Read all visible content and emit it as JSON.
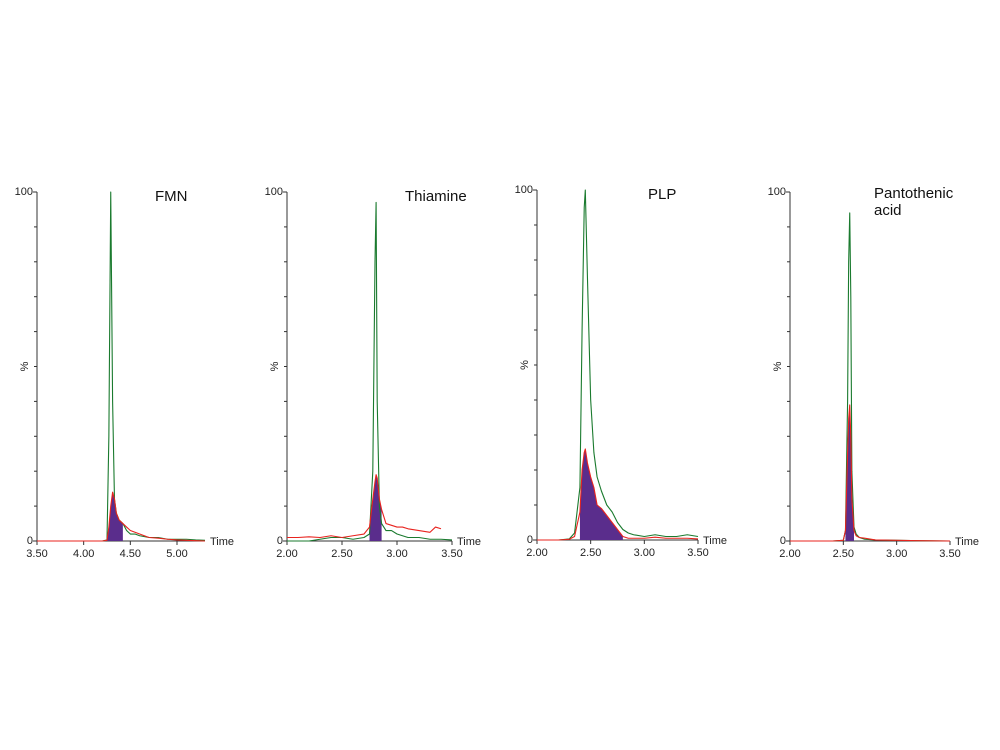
{
  "chart_data": [
    {
      "type": "line",
      "title": "FMN",
      "ylabel": "%",
      "xlabel": "Time",
      "x": [
        3.5,
        3.6,
        3.7,
        3.8,
        3.9,
        4.0,
        4.1,
        4.2,
        4.25,
        4.27,
        4.29,
        4.31,
        4.33,
        4.35,
        4.38,
        4.42,
        4.46,
        4.5,
        4.55,
        4.6,
        4.7,
        4.8,
        4.9,
        5.0,
        5.1,
        5.2,
        5.3
      ],
      "series": [
        {
          "color": "#1a7a2e",
          "values": [
            0,
            0,
            0,
            0,
            0,
            0,
            0,
            0,
            0.3,
            30,
            100,
            40,
            12,
            8,
            6,
            5,
            3,
            2,
            2,
            1.5,
            1,
            1,
            0.5,
            0.5,
            0.5,
            0.3,
            0.2
          ]
        },
        {
          "color": "#e8231e",
          "fill": "#5a2d8c",
          "fill_xlim": [
            4.25,
            4.42
          ],
          "values": [
            0,
            0,
            0,
            0,
            0,
            0,
            0,
            0,
            0.2,
            4,
            10,
            14,
            12,
            8,
            6,
            5,
            4,
            3,
            2.5,
            2,
            1,
            0.8,
            0.5,
            0.3,
            0.2,
            0.1,
            0
          ]
        }
      ],
      "xlim": [
        3.5,
        5.3
      ],
      "xticks": [
        {
          "value": 3.5,
          "label": "3.50"
        },
        {
          "value": 4,
          "label": "4.00"
        },
        {
          "value": 4.5,
          "label": "4.50"
        },
        {
          "value": 5,
          "label": "5.00"
        }
      ],
      "ylim": [
        0,
        100
      ],
      "yticks": [
        0,
        100
      ],
      "yminorticks": [
        10,
        20,
        30,
        40,
        50,
        60,
        70,
        80,
        90
      ]
    },
    {
      "type": "line",
      "title": "Thiamine",
      "ylabel": "%",
      "xlabel": "Time",
      "x": [
        2.0,
        2.1,
        2.2,
        2.3,
        2.4,
        2.5,
        2.6,
        2.7,
        2.75,
        2.78,
        2.8,
        2.81,
        2.82,
        2.84,
        2.86,
        2.9,
        2.95,
        3.0,
        3.05,
        3.1,
        3.2,
        3.3,
        3.35,
        3.4,
        3.5
      ],
      "series": [
        {
          "color": "#1a7a2e",
          "values": [
            0,
            0,
            0,
            0.5,
            1,
            1,
            0.5,
            1,
            2,
            20,
            80,
            97,
            40,
            10,
            5,
            3,
            3,
            2,
            1.5,
            1,
            1,
            0.5,
            0.5,
            0.5,
            0.3
          ]
        },
        {
          "color": "#e8231e",
          "fill": "#5a2d8c",
          "fill_xlim": [
            2.75,
            2.86
          ],
          "values": [
            1,
            1,
            1.2,
            1,
            1.5,
            1,
            1.5,
            2,
            4,
            12,
            17,
            19,
            18,
            12,
            9,
            5,
            4.5,
            4,
            4,
            3.5,
            3,
            2.5,
            4,
            3.5,
            null
          ]
        }
      ],
      "xlim": [
        2,
        3.5
      ],
      "xticks": [
        {
          "value": 2,
          "label": "2.00"
        },
        {
          "value": 2.5,
          "label": "2.50"
        },
        {
          "value": 3,
          "label": "3.00"
        },
        {
          "value": 3.5,
          "label": "3.50"
        }
      ],
      "ylim": [
        0,
        100
      ],
      "yticks": [
        0,
        100
      ],
      "yminorticks": [
        10,
        20,
        30,
        40,
        50,
        60,
        70,
        80,
        90
      ]
    },
    {
      "type": "line",
      "title": "PLP",
      "ylabel": "%",
      "xlabel": "Time",
      "x": [
        2.0,
        2.1,
        2.2,
        2.3,
        2.35,
        2.4,
        2.42,
        2.44,
        2.45,
        2.47,
        2.5,
        2.53,
        2.56,
        2.6,
        2.65,
        2.7,
        2.75,
        2.8,
        2.85,
        2.9,
        3.0,
        3.1,
        3.2,
        3.3,
        3.4,
        3.5
      ],
      "series": [
        {
          "color": "#1a7a2e",
          "values": [
            0,
            0,
            0,
            0.3,
            2,
            15,
            60,
            95,
            100,
            75,
            40,
            25,
            18,
            14,
            10,
            8,
            5,
            3,
            2,
            1.5,
            1,
            1.5,
            1,
            1,
            1.5,
            1
          ]
        },
        {
          "color": "#e8231e",
          "fill": "#5a2d8c",
          "fill_xlim": [
            2.38,
            2.8
          ],
          "values": [
            0,
            0,
            0,
            0.2,
            1,
            8,
            20,
            25,
            26,
            22,
            18,
            15,
            10,
            9,
            7,
            5,
            3,
            1,
            0.5,
            0.5,
            0.5,
            0.8,
            0.5,
            0.5,
            0.5,
            0.3
          ]
        }
      ],
      "xlim": [
        2,
        3.5
      ],
      "xticks": [
        {
          "value": 2,
          "label": "2.00"
        },
        {
          "value": 2.5,
          "label": "2.50"
        },
        {
          "value": 3,
          "label": "3.00"
        },
        {
          "value": 3.5,
          "label": "3.50"
        }
      ],
      "ylim": [
        0,
        100
      ],
      "yticks": [
        0,
        100
      ],
      "yminorticks": [
        10,
        20,
        30,
        40,
        50,
        60,
        70,
        80,
        90
      ]
    },
    {
      "type": "line",
      "title": "Pantothenic acid",
      "ylabel": "%",
      "xlabel": "Time",
      "x": [
        2.0,
        2.2,
        2.4,
        2.5,
        2.52,
        2.54,
        2.55,
        2.56,
        2.57,
        2.58,
        2.6,
        2.62,
        2.65,
        2.7,
        2.8,
        3.0,
        3.2,
        3.5
      ],
      "series": [
        {
          "color": "#1a7a2e",
          "values": [
            0,
            0,
            0,
            0.2,
            3,
            40,
            80,
            94,
            70,
            20,
            4,
            2,
            1,
            0.5,
            0.3,
            0.2,
            0.1,
            0
          ]
        },
        {
          "color": "#e8231e",
          "fill": "#5a2d8c",
          "fill_xlim": [
            2.52,
            2.6
          ],
          "values": [
            0,
            0,
            0,
            0.2,
            3,
            25,
            35,
            39,
            30,
            12,
            3,
            1.5,
            1,
            0.8,
            0.3,
            0.2,
            0.1,
            0
          ]
        }
      ],
      "xlim": [
        2,
        3.5
      ],
      "xticks": [
        {
          "value": 2,
          "label": "2.00"
        },
        {
          "value": 2.5,
          "label": "2.50"
        },
        {
          "value": 3,
          "label": "3.00"
        },
        {
          "value": 3.5,
          "label": "3.50"
        }
      ],
      "ylim": [
        0,
        100
      ],
      "yticks": [
        0,
        100
      ],
      "yminorticks": [
        10,
        20,
        30,
        40,
        50,
        60,
        70,
        80,
        90
      ]
    }
  ]
}
